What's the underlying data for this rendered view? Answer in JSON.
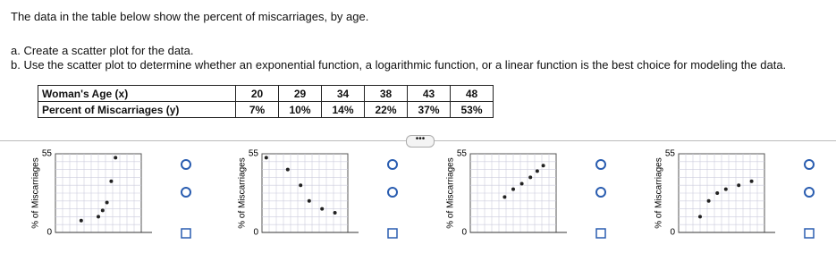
{
  "question": {
    "intro": "The data in the table below show the percent of miscarriages, by age.",
    "part_a": "a. Create a scatter plot for the data.",
    "part_b": "b. Use the scatter plot to determine whether an exponential function, a logarithmic function, or a linear function is the best choice for modeling the data."
  },
  "table": {
    "rows": [
      [
        "Woman's Age (x)",
        "20",
        "29",
        "34",
        "38",
        "43",
        "48"
      ],
      [
        "Percent of Miscarriages (y)",
        "7%",
        "10%",
        "14%",
        "22%",
        "37%",
        "53%"
      ]
    ]
  },
  "options": [
    {
      "y_max": "55",
      "y_min": "0",
      "y_label": "% of Miscarriages"
    },
    {
      "y_max": "55",
      "y_min": "0",
      "y_label": "% of Miscarriages"
    },
    {
      "y_max": "55",
      "y_min": "0",
      "y_label": "% of Miscarriages"
    },
    {
      "y_max": "55",
      "y_min": "0",
      "y_label": "% of Miscarriages"
    }
  ]
}
